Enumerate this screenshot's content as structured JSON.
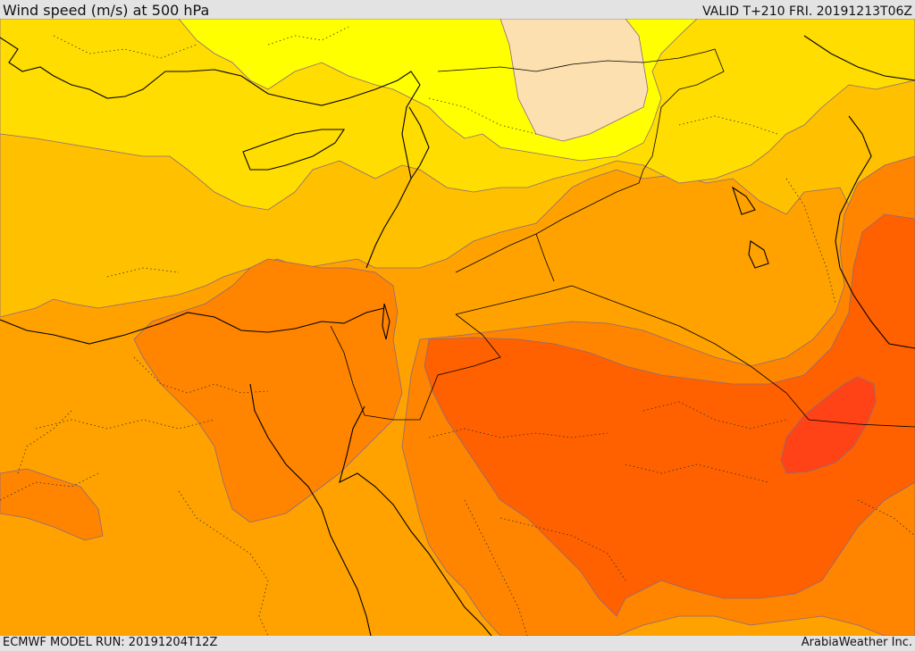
{
  "header": {
    "title": "Wind speed (m/s) at 500 hPa",
    "valid": "VALID T+210 FRI. 20191213T06Z"
  },
  "footer": {
    "model_run": "ECMWF MODEL RUN: 20191204T12Z",
    "provider": "ArabiaWeather Inc."
  },
  "map": {
    "field": "wind-speed",
    "palette": {
      "very_low": "#fce0b0",
      "low": "#ffff00",
      "mid_low": "#ffdd00",
      "mid": "#ffc000",
      "mid_high": "#ffa200",
      "high": "#ff8400",
      "very_high": "#ff6000",
      "max": "#ff4316"
    }
  }
}
